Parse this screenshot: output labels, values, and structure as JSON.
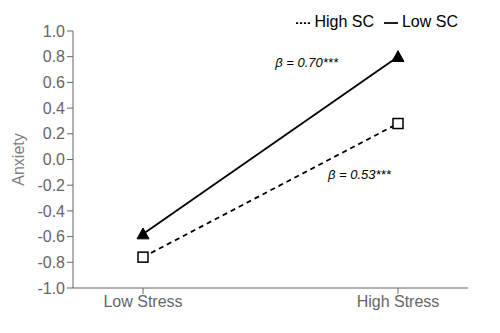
{
  "chart_data": {
    "type": "line",
    "categories": [
      "Low Stress",
      "High Stress"
    ],
    "series": [
      {
        "name": "Low SC",
        "color": "#000000",
        "marker": "triangle",
        "line_style": "solid",
        "values": [
          -0.58,
          0.8
        ]
      },
      {
        "name": "High SC",
        "color": "#000000",
        "marker": "square",
        "line_style": "dashed",
        "values": [
          -0.76,
          0.28
        ]
      }
    ],
    "y_label": "Anxiety",
    "ylim": [
      -1.0,
      1.0
    ],
    "yticks": [
      {
        "value": -1.0,
        "label": "-1.0"
      },
      -0.8,
      -0.6,
      -0.4,
      -0.2,
      {
        "value": 0.0,
        "label": "0.0"
      },
      0.2,
      0.4,
      0.6,
      0.8,
      {
        "value": 1.0,
        "label": "1.0"
      }
    ],
    "annotations": [
      "β = 0.70***",
      "β = 0.53***"
    ],
    "legend": "upper right",
    "grid": false
  }
}
